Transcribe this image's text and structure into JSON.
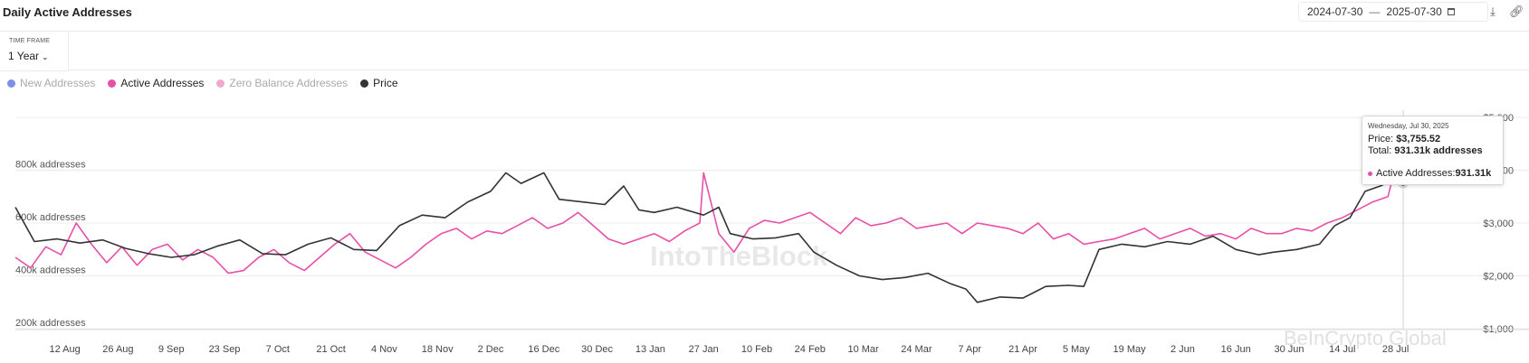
{
  "header": {
    "title": "Daily Active Addresses",
    "date_from": "2024-07-30",
    "date_sep": "—",
    "date_to": "2025-07-30",
    "icons": [
      "calendar-icon",
      "download-icon",
      "link-icon"
    ]
  },
  "timeframe": {
    "label": "TIME FRAME",
    "value": "1 Year"
  },
  "legend": [
    {
      "label": "New Addresses",
      "color": "#7f8fe8",
      "active": false
    },
    {
      "label": "Active Addresses",
      "color": "#e84fa7",
      "active": true
    },
    {
      "label": "Zero Balance Addresses",
      "color": "#f3a8cf",
      "active": false
    },
    {
      "label": "Price",
      "color": "#333333",
      "active": true
    }
  ],
  "tooltip": {
    "date": "Wednesday, Jul 30, 2025",
    "price_label": "Price: ",
    "price_value": "$3,755.52",
    "total_label": "Total: ",
    "total_value": "931.31k addresses",
    "series_label": "Active Addresses: ",
    "series_value": "931.31k"
  },
  "watermark": "IntoTheBlock",
  "watermark2": "BeInCrypto Global",
  "chart_data": {
    "type": "line",
    "x_start": "2024-07-30",
    "x_end": "2025-07-30",
    "x_ticks": [
      "12 Aug",
      "26 Aug",
      "9 Sep",
      "23 Sep",
      "7 Oct",
      "21 Oct",
      "4 Nov",
      "18 Nov",
      "2 Dec",
      "16 Dec",
      "30 Dec",
      "13 Jan",
      "27 Jan",
      "10 Feb",
      "24 Feb",
      "10 Mar",
      "24 Mar",
      "7 Apr",
      "21 Apr",
      "5 May",
      "19 May",
      "2 Jun",
      "16 Jun",
      "30 Jun",
      "14 Jul",
      "28 Jul"
    ],
    "y_left": {
      "label_ticks": [
        "200k addresses",
        "400k addresses",
        "600k addresses",
        "800k addresses"
      ],
      "values": [
        200000,
        400000,
        600000,
        800000
      ],
      "range": [
        200000,
        1000000
      ]
    },
    "y_right": {
      "label_ticks": [
        "$1,000",
        "$2,000",
        "$3,000",
        "$4,000",
        "$5,000"
      ],
      "values": [
        1000,
        2000,
        3000,
        4000,
        5000
      ],
      "range": [
        1000,
        5000
      ]
    },
    "series": [
      {
        "name": "Active Addresses",
        "color": "#e84fa7",
        "axis": "left",
        "points": [
          [
            "2024-07-30",
            470000
          ],
          [
            "2024-08-03",
            430000
          ],
          [
            "2024-08-07",
            510000
          ],
          [
            "2024-08-11",
            480000
          ],
          [
            "2024-08-15",
            600000
          ],
          [
            "2024-08-19",
            520000
          ],
          [
            "2024-08-23",
            450000
          ],
          [
            "2024-08-27",
            510000
          ],
          [
            "2024-08-31",
            440000
          ],
          [
            "2024-09-04",
            500000
          ],
          [
            "2024-09-08",
            520000
          ],
          [
            "2024-09-12",
            460000
          ],
          [
            "2024-09-16",
            500000
          ],
          [
            "2024-09-20",
            470000
          ],
          [
            "2024-09-24",
            410000
          ],
          [
            "2024-09-28",
            420000
          ],
          [
            "2024-10-02",
            470000
          ],
          [
            "2024-10-06",
            500000
          ],
          [
            "2024-10-10",
            450000
          ],
          [
            "2024-10-14",
            420000
          ],
          [
            "2024-10-18",
            470000
          ],
          [
            "2024-10-22",
            520000
          ],
          [
            "2024-10-26",
            560000
          ],
          [
            "2024-10-30",
            490000
          ],
          [
            "2024-11-03",
            460000
          ],
          [
            "2024-11-07",
            430000
          ],
          [
            "2024-11-11",
            470000
          ],
          [
            "2024-11-15",
            520000
          ],
          [
            "2024-11-19",
            560000
          ],
          [
            "2024-11-23",
            580000
          ],
          [
            "2024-11-27",
            540000
          ],
          [
            "2024-12-01",
            570000
          ],
          [
            "2024-12-05",
            560000
          ],
          [
            "2024-12-09",
            590000
          ],
          [
            "2024-12-13",
            620000
          ],
          [
            "2024-12-17",
            580000
          ],
          [
            "2024-12-21",
            600000
          ],
          [
            "2024-12-25",
            640000
          ],
          [
            "2024-12-29",
            590000
          ],
          [
            "2025-01-02",
            540000
          ],
          [
            "2025-01-06",
            520000
          ],
          [
            "2025-01-10",
            540000
          ],
          [
            "2025-01-14",
            560000
          ],
          [
            "2025-01-18",
            530000
          ],
          [
            "2025-01-22",
            570000
          ],
          [
            "2025-01-26",
            600000
          ],
          [
            "2025-01-27",
            790000
          ],
          [
            "2025-01-31",
            560000
          ],
          [
            "2025-02-04",
            490000
          ],
          [
            "2025-02-08",
            580000
          ],
          [
            "2025-02-12",
            610000
          ],
          [
            "2025-02-16",
            600000
          ],
          [
            "2025-02-20",
            620000
          ],
          [
            "2025-02-24",
            640000
          ],
          [
            "2025-02-28",
            600000
          ],
          [
            "2025-03-04",
            560000
          ],
          [
            "2025-03-08",
            620000
          ],
          [
            "2025-03-12",
            590000
          ],
          [
            "2025-03-16",
            600000
          ],
          [
            "2025-03-20",
            620000
          ],
          [
            "2025-03-24",
            580000
          ],
          [
            "2025-03-28",
            590000
          ],
          [
            "2025-04-01",
            600000
          ],
          [
            "2025-04-05",
            560000
          ],
          [
            "2025-04-09",
            600000
          ],
          [
            "2025-04-13",
            590000
          ],
          [
            "2025-04-17",
            580000
          ],
          [
            "2025-04-21",
            560000
          ],
          [
            "2025-04-25",
            600000
          ],
          [
            "2025-04-29",
            540000
          ],
          [
            "2025-05-03",
            560000
          ],
          [
            "2025-05-07",
            520000
          ],
          [
            "2025-05-11",
            530000
          ],
          [
            "2025-05-15",
            540000
          ],
          [
            "2025-05-19",
            560000
          ],
          [
            "2025-05-23",
            580000
          ],
          [
            "2025-05-27",
            540000
          ],
          [
            "2025-05-31",
            560000
          ],
          [
            "2025-06-04",
            580000
          ],
          [
            "2025-06-08",
            550000
          ],
          [
            "2025-06-12",
            560000
          ],
          [
            "2025-06-16",
            540000
          ],
          [
            "2025-06-20",
            580000
          ],
          [
            "2025-06-24",
            560000
          ],
          [
            "2025-06-28",
            560000
          ],
          [
            "2025-07-02",
            580000
          ],
          [
            "2025-07-06",
            570000
          ],
          [
            "2025-07-10",
            600000
          ],
          [
            "2025-07-14",
            620000
          ],
          [
            "2025-07-18",
            650000
          ],
          [
            "2025-07-22",
            680000
          ],
          [
            "2025-07-26",
            700000
          ],
          [
            "2025-07-30",
            931310
          ]
        ]
      },
      {
        "name": "Price",
        "color": "#333333",
        "axis": "right",
        "points": [
          [
            "2024-07-30",
            3300
          ],
          [
            "2024-08-04",
            2650
          ],
          [
            "2024-08-10",
            2700
          ],
          [
            "2024-08-16",
            2620
          ],
          [
            "2024-08-22",
            2680
          ],
          [
            "2024-08-28",
            2520
          ],
          [
            "2024-09-03",
            2420
          ],
          [
            "2024-09-09",
            2350
          ],
          [
            "2024-09-15",
            2400
          ],
          [
            "2024-09-21",
            2560
          ],
          [
            "2024-09-27",
            2680
          ],
          [
            "2024-10-03",
            2420
          ],
          [
            "2024-10-09",
            2400
          ],
          [
            "2024-10-15",
            2600
          ],
          [
            "2024-10-21",
            2720
          ],
          [
            "2024-10-27",
            2500
          ],
          [
            "2024-11-02",
            2480
          ],
          [
            "2024-11-08",
            2950
          ],
          [
            "2024-11-14",
            3150
          ],
          [
            "2024-11-20",
            3100
          ],
          [
            "2024-11-26",
            3400
          ],
          [
            "2024-12-02",
            3600
          ],
          [
            "2024-12-06",
            3950
          ],
          [
            "2024-12-10",
            3750
          ],
          [
            "2024-12-16",
            3950
          ],
          [
            "2024-12-20",
            3450
          ],
          [
            "2024-12-26",
            3400
          ],
          [
            "2025-01-01",
            3350
          ],
          [
            "2025-01-06",
            3700
          ],
          [
            "2025-01-10",
            3250
          ],
          [
            "2025-01-14",
            3200
          ],
          [
            "2025-01-20",
            3300
          ],
          [
            "2025-01-27",
            3150
          ],
          [
            "2025-01-31",
            3300
          ],
          [
            "2025-02-03",
            2800
          ],
          [
            "2025-02-09",
            2700
          ],
          [
            "2025-02-15",
            2720
          ],
          [
            "2025-02-21",
            2800
          ],
          [
            "2025-02-25",
            2450
          ],
          [
            "2025-03-03",
            2200
          ],
          [
            "2025-03-09",
            2000
          ],
          [
            "2025-03-15",
            1930
          ],
          [
            "2025-03-21",
            1970
          ],
          [
            "2025-03-27",
            2050
          ],
          [
            "2025-04-02",
            1850
          ],
          [
            "2025-04-06",
            1750
          ],
          [
            "2025-04-09",
            1500
          ],
          [
            "2025-04-15",
            1600
          ],
          [
            "2025-04-21",
            1580
          ],
          [
            "2025-04-27",
            1800
          ],
          [
            "2025-05-03",
            1820
          ],
          [
            "2025-05-07",
            1800
          ],
          [
            "2025-05-11",
            2500
          ],
          [
            "2025-05-17",
            2600
          ],
          [
            "2025-05-23",
            2550
          ],
          [
            "2025-05-29",
            2650
          ],
          [
            "2025-06-04",
            2600
          ],
          [
            "2025-06-10",
            2750
          ],
          [
            "2025-06-16",
            2500
          ],
          [
            "2025-06-22",
            2400
          ],
          [
            "2025-06-26",
            2450
          ],
          [
            "2025-07-02",
            2500
          ],
          [
            "2025-07-08",
            2600
          ],
          [
            "2025-07-12",
            2950
          ],
          [
            "2025-07-16",
            3100
          ],
          [
            "2025-07-20",
            3600
          ],
          [
            "2025-07-24",
            3700
          ],
          [
            "2025-07-27",
            3800
          ],
          [
            "2025-07-30",
            3755.52
          ]
        ]
      }
    ]
  }
}
